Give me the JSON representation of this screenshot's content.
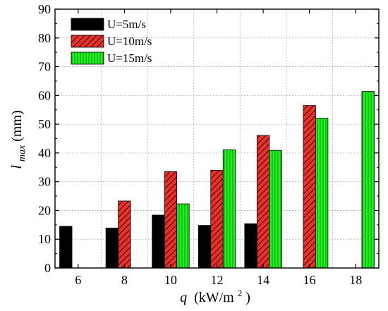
{
  "chart_data": {
    "type": "bar",
    "categories": [
      "6",
      "8",
      "10",
      "12",
      "14",
      "16",
      "18"
    ],
    "series": [
      {
        "name": "U=5m/s",
        "values": [
          14.5,
          13.9,
          18.4,
          14.8,
          15.4,
          null,
          null
        ],
        "color": "#000000",
        "pattern": "solid"
      },
      {
        "name": "U=10m/s",
        "values": [
          null,
          23.3,
          33.5,
          34.0,
          46.1,
          56.5,
          null
        ],
        "color": "#e8312b",
        "pattern": "diagonal-hatch"
      },
      {
        "name": "U=15m/s",
        "values": [
          null,
          null,
          22.3,
          41.1,
          40.9,
          52.1,
          61.4
        ],
        "color": "#22ee22",
        "pattern": "vertical-hatch"
      }
    ],
    "ylim": [
      0,
      90
    ],
    "yticks": [
      0,
      10,
      20,
      30,
      40,
      50,
      60,
      70,
      80,
      90
    ],
    "xlabel": {
      "italic": "q",
      "unit": "(kW/m",
      "sup": "2",
      "close": ")"
    },
    "ylabel": {
      "italic": "l",
      "sub": "max",
      "unit": "(mm)"
    },
    "grid": true,
    "grid_style": "dotted",
    "legend_position": "top-left"
  }
}
